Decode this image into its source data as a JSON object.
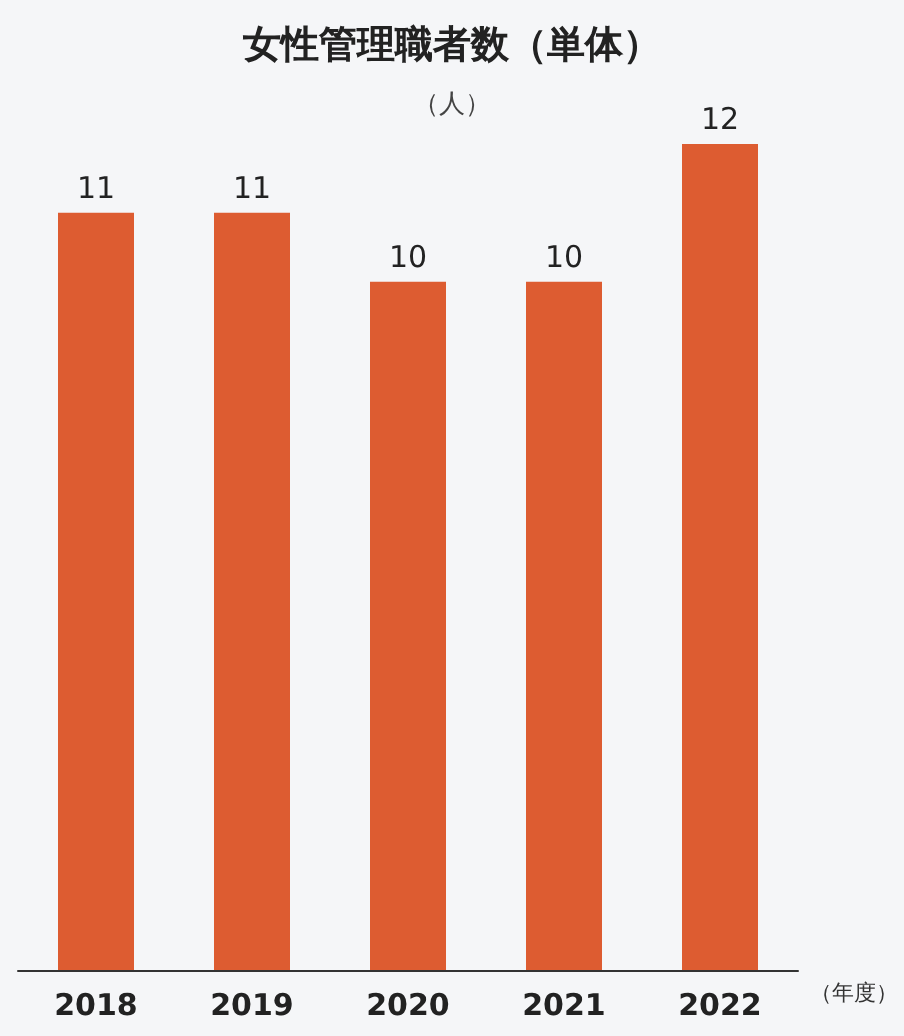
{
  "chart_data": {
    "type": "bar",
    "title": "女性管理職者数（単体）",
    "subtitle": "（人）",
    "xlabel": "（年度）",
    "categories": [
      "2018",
      "2019",
      "2020",
      "2021",
      "2022"
    ],
    "values": [
      11,
      11,
      10,
      10,
      12
    ],
    "color": "#dd5c31",
    "data_labels": true
  }
}
